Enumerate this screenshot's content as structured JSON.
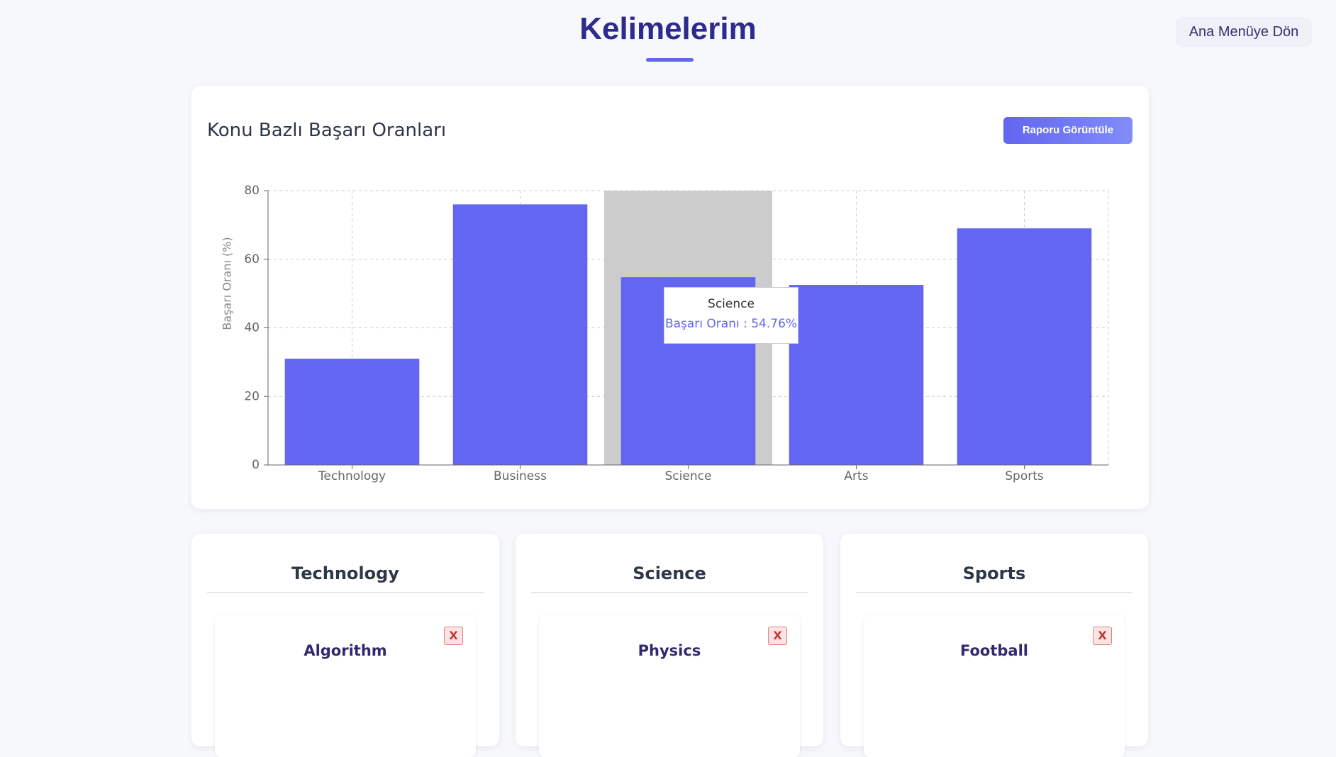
{
  "header": {
    "title": "Kelimelerim",
    "back_button": "Ana Menüye Dön"
  },
  "chart_card": {
    "title": "Konu Bazlı Başarı Oranları",
    "report_button": "Raporu Görüntüle"
  },
  "chart_data": {
    "type": "bar",
    "y_label": "Başarı Oranı (%)",
    "categories": [
      "Technology",
      "Business",
      "Science",
      "Arts",
      "Sports"
    ],
    "values": [
      31,
      76,
      54.76,
      52.5,
      69
    ],
    "color": "#6366f1",
    "ylim": [
      0,
      80
    ],
    "yticks": [
      0,
      20,
      40,
      60,
      80
    ],
    "grid": true,
    "highlight": 2,
    "tooltip": {
      "title": "Science",
      "text": "Başarı Oranı : 54.76%"
    }
  },
  "cards": [
    {
      "title": "Technology",
      "words": [
        {
          "word": "Algorithm",
          "delete": "X"
        }
      ]
    },
    {
      "title": "Science",
      "words": [
        {
          "word": "Physics",
          "delete": "X"
        }
      ]
    },
    {
      "title": "Sports",
      "words": [
        {
          "word": "Football",
          "delete": "X"
        }
      ]
    }
  ]
}
